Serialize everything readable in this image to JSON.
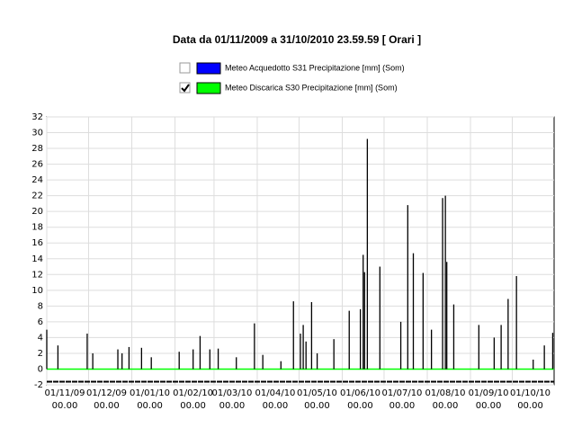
{
  "chart_data": {
    "type": "spike",
    "title": "Data da 01/11/2009 a 31/10/2010 23.59.59  [ Orari ]",
    "series": [
      {
        "name": "Meteo Acquedotto S31 Precipitazione [mm] (Som)",
        "color": "#0000ff",
        "checked": false
      },
      {
        "name": "Meteo Discarica S30 Precipitazione [mm] (Som)",
        "color": "#00ff00",
        "checked": true,
        "spike_color": "#000000",
        "x": [
          "01/11/09",
          "09/11/09",
          "30/11/09",
          "04/12/09",
          "22/12/09",
          "25/12/09",
          "30/12/09",
          "08/01/10",
          "15/01/10",
          "04/02/10",
          "14/02/10",
          "19/02/10",
          "26/02/10",
          "04/03/10",
          "17/03/10",
          "30/03/10",
          "05/04/10",
          "18/04/10",
          "27/04/10",
          "02/05/10",
          "04/05/10",
          "06/05/10",
          "10/05/10",
          "14/05/10",
          "26/05/10",
          "06/06/10",
          "14/06/10",
          "16/06/10",
          "17/06/10",
          "19/06/10",
          "28/06/10",
          "13/07/10",
          "18/07/10",
          "22/07/10",
          "29/07/10",
          "04/08/10",
          "12/08/10",
          "14/08/10",
          "15/08/10",
          "20/08/10",
          "07/09/10",
          "18/09/10",
          "23/09/10",
          "28/09/10",
          "04/10/10",
          "16/10/10",
          "24/10/10",
          "30/10/10"
        ],
        "values": [
          5,
          3,
          4.5,
          2,
          2.5,
          2,
          2.8,
          2.7,
          1.5,
          2.2,
          2.5,
          4.2,
          2.5,
          2.6,
          1.5,
          5.8,
          1.8,
          1,
          8.6,
          4.5,
          5.6,
          3.5,
          8.5,
          2,
          3.8,
          7.4,
          7.6,
          14.5,
          12.3,
          29.2,
          13,
          6,
          20.8,
          14.7,
          12.2,
          5,
          21.7,
          22,
          13.6,
          8.2,
          5.6,
          4,
          5.6,
          8.9,
          11.8,
          1.2,
          3,
          4.6
        ]
      }
    ],
    "xlim": [
      "01/11/09",
      "31/10/10"
    ],
    "xticks": [
      {
        "date": "01/11/09",
        "time": "00.00"
      },
      {
        "date": "01/12/09",
        "time": "00.00"
      },
      {
        "date": "01/01/10",
        "time": "00.00"
      },
      {
        "date": "01/02/10",
        "time": "00.00"
      },
      {
        "date": "01/03/10",
        "time": "00.00"
      },
      {
        "date": "01/04/10",
        "time": "00.00"
      },
      {
        "date": "01/05/10",
        "time": "00.00"
      },
      {
        "date": "01/06/10",
        "time": "00.00"
      },
      {
        "date": "01/07/10",
        "time": "00.00"
      },
      {
        "date": "01/08/10",
        "time": "00.00"
      },
      {
        "date": "01/09/10",
        "time": "00.00"
      },
      {
        "date": "01/10/10",
        "time": "00.00"
      }
    ],
    "ylim": [
      -2,
      32
    ],
    "yticks": [
      -2,
      0,
      2,
      4,
      6,
      8,
      10,
      12,
      14,
      16,
      18,
      20,
      22,
      24,
      26,
      28,
      30,
      32
    ],
    "grid": true
  }
}
